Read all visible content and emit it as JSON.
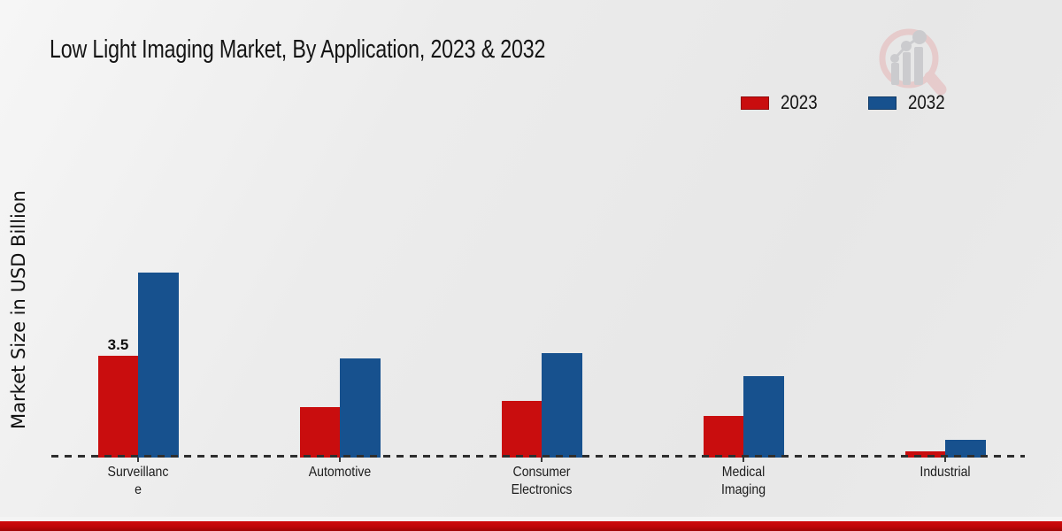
{
  "title": "Low Light Imaging Market, By Application, 2023 & 2032",
  "ylabel": "Market Size in USD Billion",
  "legend": {
    "position": "top-right",
    "items": [
      {
        "label": "2023",
        "color": "#c90d0e"
      },
      {
        "label": "2032",
        "color": "#17518e"
      }
    ]
  },
  "watermark_icon": "magnifier-bar-chart-logo",
  "footer_accent_color": "#bf0709",
  "chart_data": {
    "type": "bar",
    "title": "Low Light Imaging Market, By Application, 2023 & 2032",
    "xlabel": "",
    "ylabel": "Market Size in USD Billion",
    "categories": [
      "Surveillance",
      "Automotive",
      "Consumer Electronics",
      "Medical Imaging",
      "Industrial"
    ],
    "category_display": [
      "Surveillanc\ne",
      "Automotive",
      "Consumer\nElectronics",
      "Medical\nImaging",
      "Industrial"
    ],
    "series": [
      {
        "name": "2023",
        "color": "#c90d0e",
        "values": [
          3.5,
          1.75,
          1.94,
          1.44,
          0.21
        ]
      },
      {
        "name": "2032",
        "color": "#17518e",
        "values": [
          6.36,
          3.41,
          3.59,
          2.79,
          0.61
        ]
      }
    ],
    "bar_labels": [
      {
        "series_index": 0,
        "category_index": 0,
        "text": "3.5"
      }
    ],
    "ylim": [
      0,
      7
    ],
    "grid": false,
    "baseline_style": "dashed",
    "legend_position": "top-right",
    "units": "USD Billion"
  }
}
